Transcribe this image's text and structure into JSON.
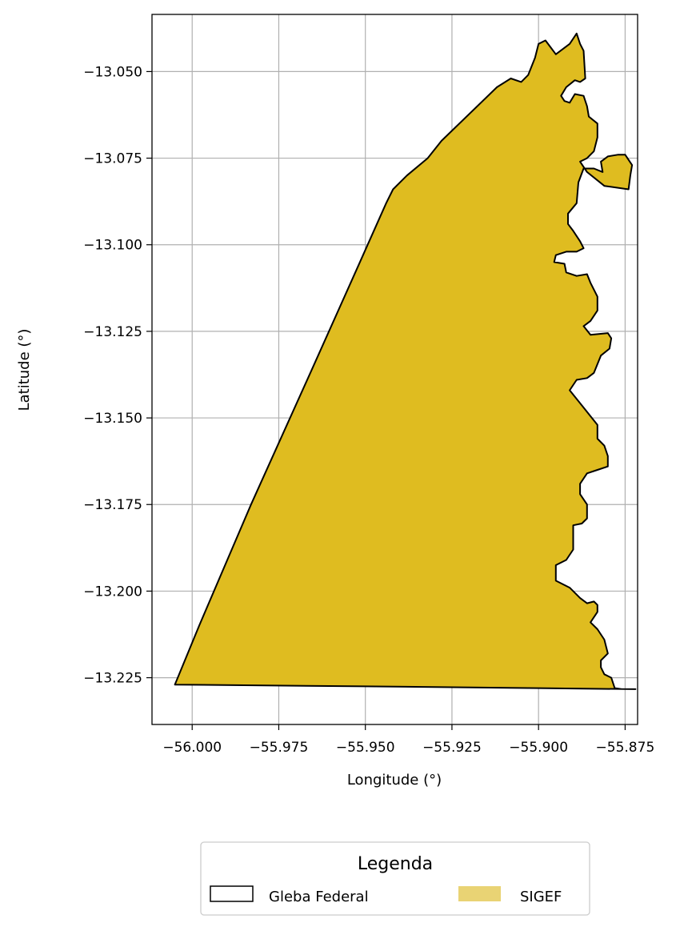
{
  "chart_data": {
    "type": "map",
    "xlabel": "Longitude (°)",
    "ylabel": "Latitude (°)",
    "xlim": [
      -56.0116,
      -55.8714
    ],
    "ylim": [
      -13.2385,
      -13.0335
    ],
    "xticks": [
      -56.0,
      -55.975,
      -55.95,
      -55.925,
      -55.9,
      -55.875
    ],
    "xtick_labels": [
      "−56.000",
      "−55.975",
      "−55.950",
      "−55.925",
      "−55.900",
      "−55.875"
    ],
    "yticks": [
      -13.05,
      -13.075,
      -13.1,
      -13.125,
      -13.15,
      -13.175,
      -13.2,
      -13.225
    ],
    "ytick_labels": [
      "−13.050",
      "−13.075",
      "−13.100",
      "−13.125",
      "−13.150",
      "−13.175",
      "−13.200",
      "−13.225"
    ],
    "grid": true,
    "legend": {
      "title": "Legenda",
      "placement": "below",
      "entries": [
        {
          "label": "Gleba Federal",
          "style": "outline",
          "edgecolor": "#000000"
        },
        {
          "label": "SIGEF",
          "style": "fill",
          "color": "#e9d374"
        }
      ]
    },
    "polygon": {
      "facecolor": "#dfbc20",
      "edgecolor": "#000000",
      "coordinates": [
        [
          -56.005,
          -13.227
        ],
        [
          -55.998,
          -13.21
        ],
        [
          -55.983,
          -13.175
        ],
        [
          -55.965,
          -13.135
        ],
        [
          -55.952,
          -13.106
        ],
        [
          -55.944,
          -13.088
        ],
        [
          -55.942,
          -13.084
        ],
        [
          -55.938,
          -13.08
        ],
        [
          -55.932,
          -13.075
        ],
        [
          -55.928,
          -13.07
        ],
        [
          -55.912,
          -13.0545
        ],
        [
          -55.908,
          -13.052
        ],
        [
          -55.905,
          -13.053
        ],
        [
          -55.903,
          -13.051
        ],
        [
          -55.901,
          -13.046
        ],
        [
          -55.9,
          -13.042
        ],
        [
          -55.898,
          -13.041
        ],
        [
          -55.8965,
          -13.043
        ],
        [
          -55.895,
          -13.045
        ],
        [
          -55.891,
          -13.042
        ],
        [
          -55.889,
          -13.039
        ],
        [
          -55.888,
          -13.042
        ],
        [
          -55.887,
          -13.044
        ],
        [
          -55.8865,
          -13.052
        ],
        [
          -55.888,
          -13.053
        ],
        [
          -55.8895,
          -13.0525
        ],
        [
          -55.892,
          -13.0545
        ],
        [
          -55.8935,
          -13.057
        ],
        [
          -55.8925,
          -13.0585
        ],
        [
          -55.891,
          -13.059
        ],
        [
          -55.8895,
          -13.0565
        ],
        [
          -55.887,
          -13.057
        ],
        [
          -55.886,
          -13.06
        ],
        [
          -55.8855,
          -13.063
        ],
        [
          -55.883,
          -13.065
        ],
        [
          -55.883,
          -13.069
        ],
        [
          -55.884,
          -13.073
        ],
        [
          -55.886,
          -13.075
        ],
        [
          -55.888,
          -13.076
        ],
        [
          -55.886,
          -13.079
        ],
        [
          -55.881,
          -13.083
        ],
        [
          -55.874,
          -13.084
        ],
        [
          -55.8735,
          -13.08
        ],
        [
          -55.873,
          -13.077
        ],
        [
          -55.875,
          -13.074
        ],
        [
          -55.877,
          -13.074
        ],
        [
          -55.88,
          -13.0745
        ],
        [
          -55.882,
          -13.076
        ],
        [
          -55.8815,
          -13.079
        ],
        [
          -55.884,
          -13.078
        ],
        [
          -55.887,
          -13.078
        ],
        [
          -55.8885,
          -13.082
        ],
        [
          -55.889,
          -13.088
        ],
        [
          -55.8915,
          -13.091
        ],
        [
          -55.8915,
          -13.094
        ],
        [
          -55.89,
          -13.096
        ],
        [
          -55.888,
          -13.099
        ],
        [
          -55.887,
          -13.101
        ],
        [
          -55.889,
          -13.102
        ],
        [
          -55.892,
          -13.102
        ],
        [
          -55.895,
          -13.103
        ],
        [
          -55.8955,
          -13.105
        ],
        [
          -55.8925,
          -13.1055
        ],
        [
          -55.892,
          -13.108
        ],
        [
          -55.889,
          -13.109
        ],
        [
          -55.886,
          -13.1085
        ],
        [
          -55.885,
          -13.111
        ],
        [
          -55.883,
          -13.115
        ],
        [
          -55.883,
          -13.119
        ],
        [
          -55.885,
          -13.122
        ],
        [
          -55.887,
          -13.1235
        ],
        [
          -55.885,
          -13.126
        ],
        [
          -55.88,
          -13.1255
        ],
        [
          -55.879,
          -13.127
        ],
        [
          -55.8795,
          -13.13
        ],
        [
          -55.882,
          -13.132
        ],
        [
          -55.884,
          -13.137
        ],
        [
          -55.886,
          -13.1385
        ],
        [
          -55.889,
          -13.139
        ],
        [
          -55.891,
          -13.142
        ],
        [
          -55.887,
          -13.147
        ],
        [
          -55.883,
          -13.152
        ],
        [
          -55.883,
          -13.156
        ],
        [
          -55.881,
          -13.158
        ],
        [
          -55.88,
          -13.161
        ],
        [
          -55.88,
          -13.164
        ],
        [
          -55.883,
          -13.165
        ],
        [
          -55.886,
          -13.166
        ],
        [
          -55.888,
          -13.169
        ],
        [
          -55.888,
          -13.172
        ],
        [
          -55.886,
          -13.175
        ],
        [
          -55.886,
          -13.179
        ],
        [
          -55.8875,
          -13.1805
        ],
        [
          -55.89,
          -13.181
        ],
        [
          -55.89,
          -13.188
        ],
        [
          -55.892,
          -13.191
        ],
        [
          -55.895,
          -13.1925
        ],
        [
          -55.895,
          -13.197
        ],
        [
          -55.891,
          -13.199
        ],
        [
          -55.888,
          -13.202
        ],
        [
          -55.886,
          -13.2035
        ],
        [
          -55.884,
          -13.203
        ],
        [
          -55.883,
          -13.204
        ],
        [
          -55.883,
          -13.206
        ],
        [
          -55.885,
          -13.209
        ],
        [
          -55.883,
          -13.211
        ],
        [
          -55.881,
          -13.214
        ],
        [
          -55.88,
          -13.218
        ],
        [
          -55.882,
          -13.22
        ],
        [
          -55.882,
          -13.222
        ],
        [
          -55.881,
          -13.224
        ],
        [
          -55.879,
          -13.225
        ],
        [
          -55.878,
          -13.228
        ],
        [
          -55.876,
          -13.2283
        ],
        [
          -55.872,
          -13.2283
        ],
        [
          -55.9,
          -13.228
        ],
        [
          -55.95,
          -13.2275
        ]
      ]
    }
  }
}
